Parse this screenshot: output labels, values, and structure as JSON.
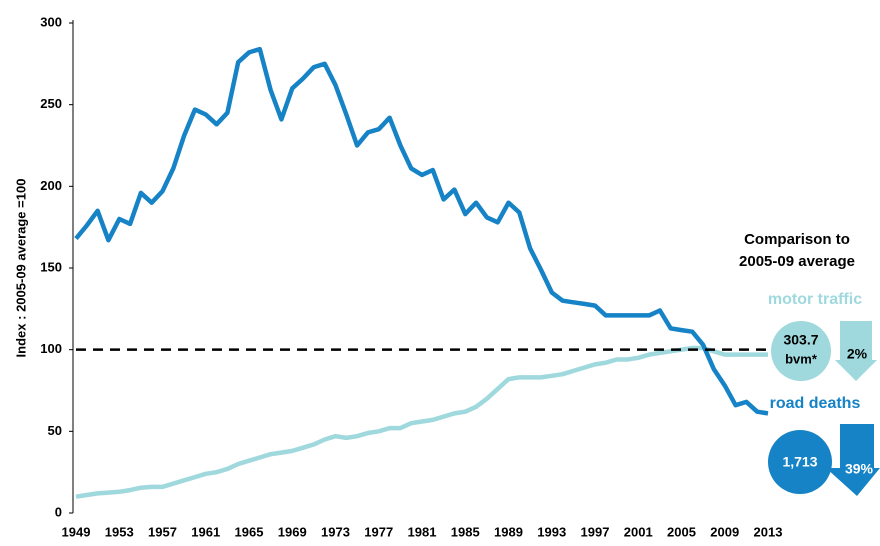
{
  "chart_data": {
    "type": "line",
    "y_label": "Index : 2005-09 average =100",
    "x": [
      1949,
      1950,
      1951,
      1952,
      1953,
      1954,
      1955,
      1956,
      1957,
      1958,
      1959,
      1960,
      1961,
      1962,
      1963,
      1964,
      1965,
      1966,
      1967,
      1968,
      1969,
      1970,
      1971,
      1972,
      1973,
      1974,
      1975,
      1976,
      1977,
      1978,
      1979,
      1980,
      1981,
      1982,
      1983,
      1984,
      1985,
      1986,
      1987,
      1988,
      1989,
      1990,
      1991,
      1992,
      1993,
      1994,
      1995,
      1996,
      1997,
      1998,
      1999,
      2000,
      2001,
      2002,
      2003,
      2004,
      2005,
      2006,
      2007,
      2008,
      2009,
      2010,
      2011,
      2012,
      2013
    ],
    "series": [
      {
        "name": "road deaths",
        "color": "#1683c6",
        "values": [
          168,
          176,
          185,
          167,
          180,
          177,
          196,
          190,
          197,
          211,
          231,
          247,
          244,
          238,
          245,
          276,
          282,
          284,
          259,
          241,
          260,
          266,
          273,
          275,
          262,
          244,
          225,
          233,
          235,
          242,
          225,
          211,
          207,
          210,
          192,
          198,
          183,
          190,
          181,
          178,
          190,
          184,
          162,
          149,
          135,
          130,
          129,
          128,
          127,
          121,
          121,
          121,
          121,
          121,
          124,
          113,
          112,
          111,
          103,
          88,
          78,
          66,
          68,
          62,
          61
        ]
      },
      {
        "name": "motor traffic",
        "color": "#9fd9dd",
        "values": [
          10,
          11,
          12,
          12.5,
          13,
          14,
          15.5,
          16,
          16,
          18,
          20,
          22,
          24,
          25,
          27,
          30,
          32,
          34,
          36,
          37,
          38,
          40,
          42,
          45,
          47,
          46,
          47,
          49,
          50,
          52,
          52,
          55,
          56,
          57,
          59,
          61,
          62,
          65,
          70,
          76,
          82,
          83,
          83,
          83,
          84,
          85,
          87,
          89,
          91,
          92,
          94,
          94,
          95,
          97,
          98,
          99,
          100,
          101,
          101,
          99,
          97,
          97,
          97,
          97,
          97
        ]
      }
    ],
    "reference_line": 100,
    "xlim": [
      1949,
      2013
    ],
    "xticks": [
      1949,
      1953,
      1957,
      1961,
      1965,
      1969,
      1973,
      1977,
      1981,
      1985,
      1989,
      1993,
      1997,
      2001,
      2005,
      2009,
      2013
    ],
    "ylim": [
      0,
      300
    ],
    "yticks": [
      0,
      50,
      100,
      150,
      200,
      250,
      300
    ],
    "comparison": {
      "heading": [
        "Comparison to",
        "2005-09 average"
      ],
      "motor_traffic": {
        "value": "303.7",
        "unit": "bvm*",
        "change": "2%"
      },
      "road_deaths": {
        "value": "1,713",
        "change": "39%"
      }
    }
  }
}
